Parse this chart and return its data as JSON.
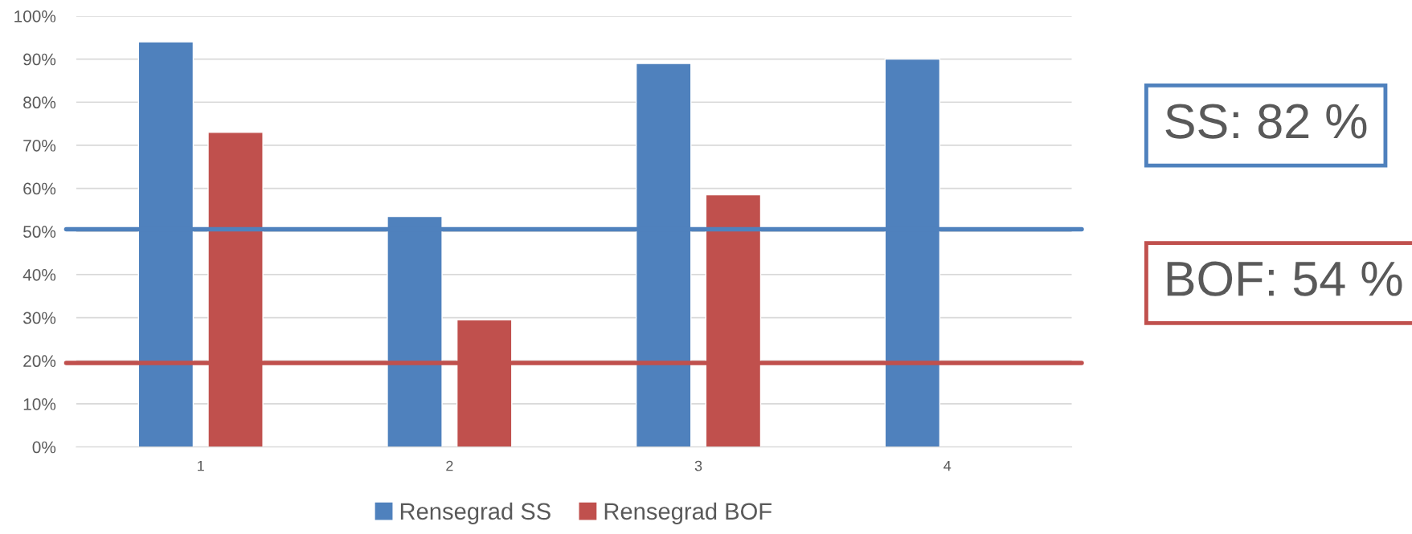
{
  "chart_data": {
    "type": "bar",
    "categories": [
      "1",
      "2",
      "3",
      "4"
    ],
    "series": [
      {
        "name": "Rensegrad SS",
        "color": "#4f81bd",
        "values": [
          94,
          53.5,
          89,
          90
        ]
      },
      {
        "name": "Rensegrad BOF",
        "color": "#c0504d",
        "values": [
          73,
          29.5,
          58.5,
          null
        ]
      }
    ],
    "ylim": [
      0,
      100
    ],
    "yticks": [
      {
        "value": 0,
        "label": "0%"
      },
      {
        "value": 10,
        "label": "10%"
      },
      {
        "value": 20,
        "label": "20%"
      },
      {
        "value": 30,
        "label": "30%"
      },
      {
        "value": 40,
        "label": "40%"
      },
      {
        "value": 50,
        "label": "50%"
      },
      {
        "value": 60,
        "label": "60%"
      },
      {
        "value": 70,
        "label": "70%"
      },
      {
        "value": 80,
        "label": "80%"
      },
      {
        "value": 90,
        "label": "90%"
      },
      {
        "value": 100,
        "label": "100%"
      }
    ],
    "ref_lines": [
      {
        "axis": "y",
        "value": 50.5,
        "color": "#4f81bd"
      },
      {
        "axis": "y",
        "value": 19.5,
        "color": "#c0504d"
      }
    ],
    "annotations": [
      "SS: 82 %",
      "BOF: 54 %"
    ],
    "grid": "y",
    "legend": "bottom"
  }
}
